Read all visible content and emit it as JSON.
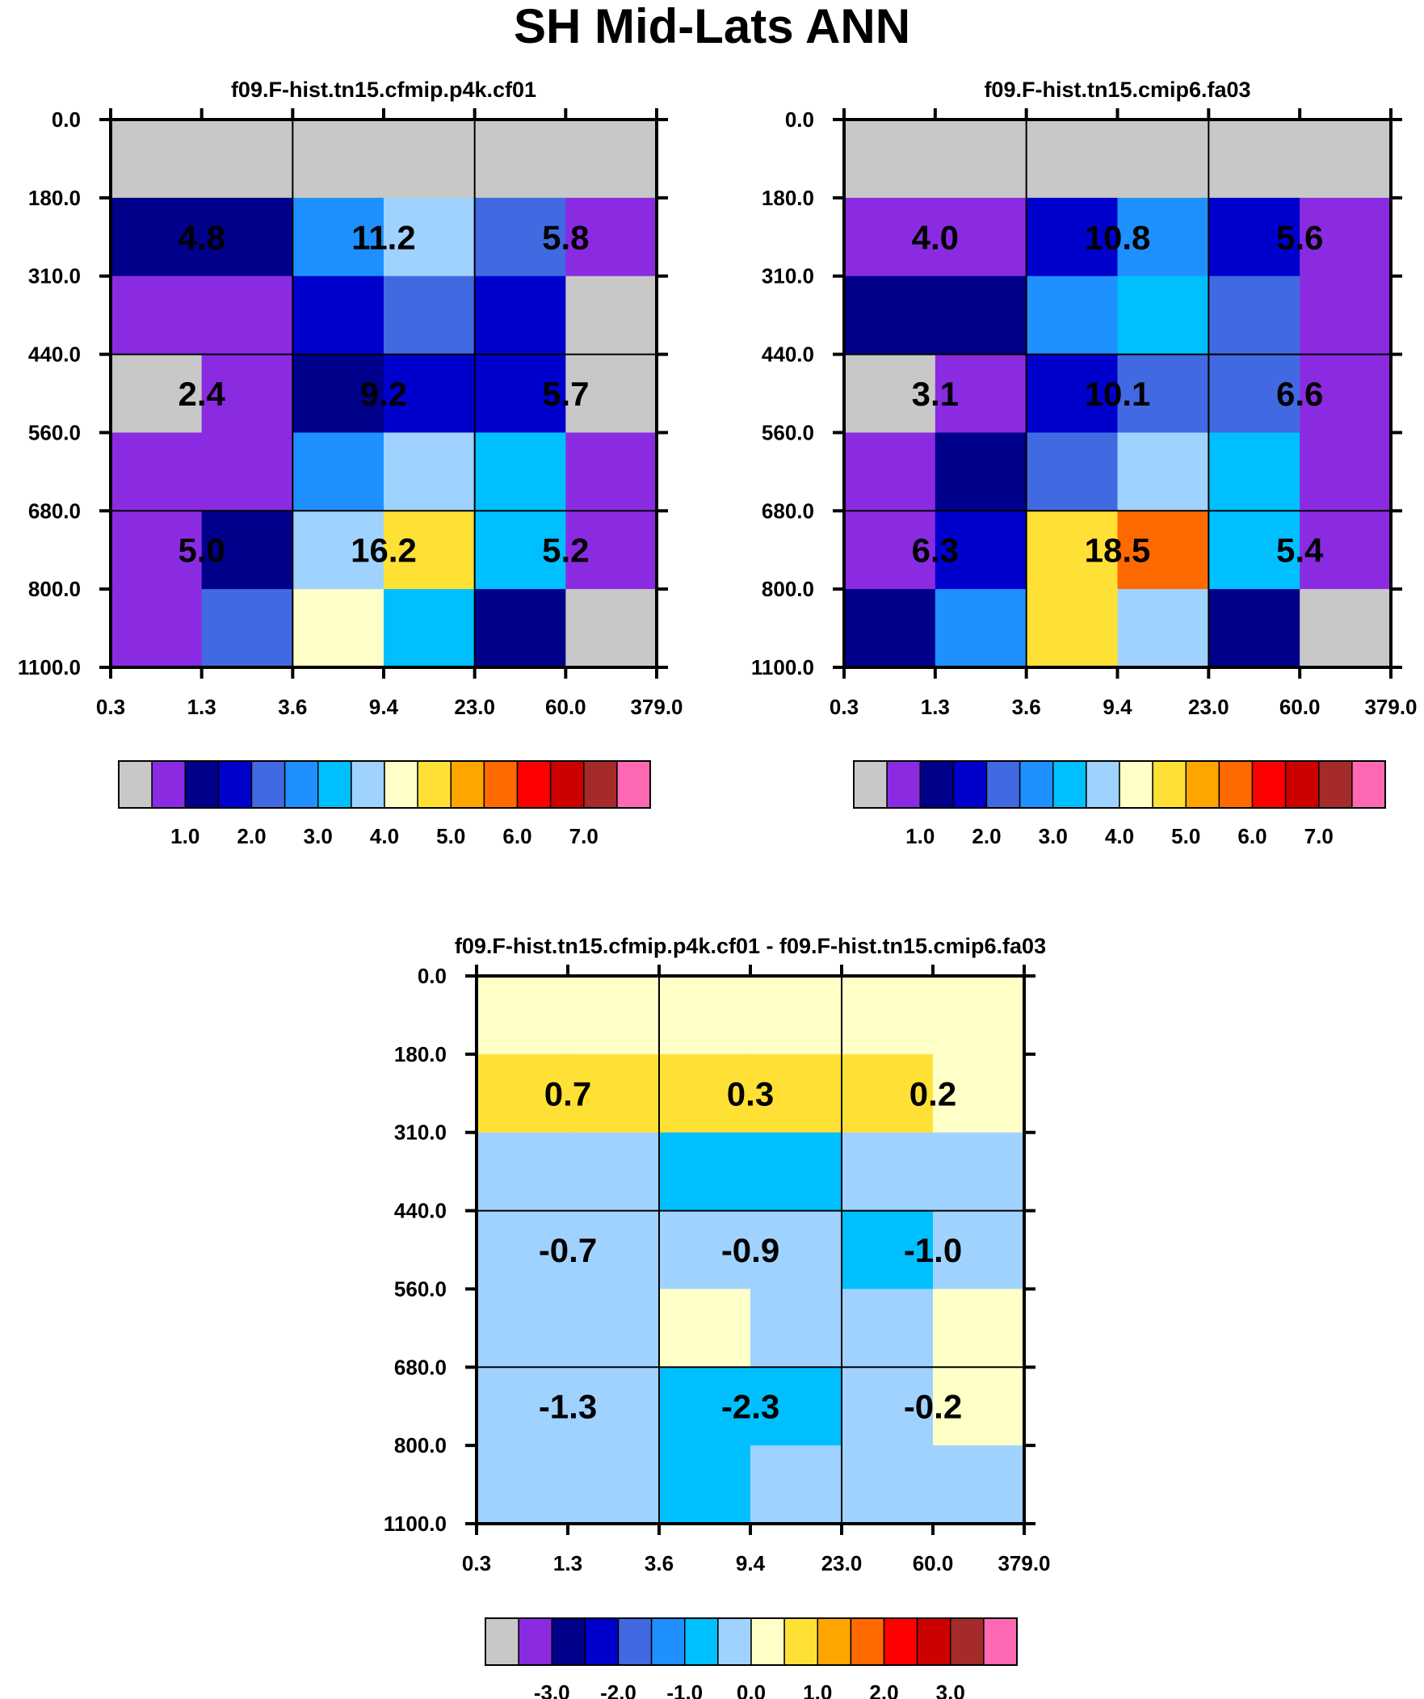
{
  "title": "SH Mid-Lats ANN",
  "palette": {
    "missing": "#c8c8c8",
    "colors": [
      "#c8c8c8",
      "#8a2be2",
      "#00008b",
      "#0000cd",
      "#4169e1",
      "#1e90ff",
      "#00bfff",
      "#a0d2ff",
      "#ffffc8",
      "#ffe135",
      "#ffa500",
      "#ff6a00",
      "#ff0000",
      "#cd0000",
      "#a52a2a",
      "#ff69b4"
    ]
  },
  "chart_data": [
    {
      "type": "heatmap",
      "name": "panel-left",
      "title": "f09.F-hist.tn15.cfmip.p4k.cf01",
      "x_ticks": [
        "0.3",
        "1.3",
        "3.6",
        "9.4",
        "23.0",
        "60.0",
        "379.0"
      ],
      "y_ticks": [
        "0.0",
        "180.0",
        "310.0",
        "440.0",
        "560.0",
        "680.0",
        "800.0",
        "1100.0"
      ],
      "cell_color_index": [
        [
          0,
          0,
          0,
          0,
          0,
          0
        ],
        [
          2,
          2,
          5,
          7,
          4,
          1
        ],
        [
          1,
          1,
          3,
          4,
          3,
          0
        ],
        [
          0,
          1,
          2,
          3,
          3,
          0
        ],
        [
          1,
          1,
          5,
          7,
          6,
          1
        ],
        [
          1,
          2,
          7,
          9,
          6,
          1
        ],
        [
          1,
          4,
          8,
          6,
          2,
          0
        ]
      ],
      "box_labels": [
        [
          "4.8",
          "11.2",
          "5.8"
        ],
        [
          "2.4",
          "9.2",
          "5.7"
        ],
        [
          "5.0",
          "16.2",
          "5.2"
        ]
      ],
      "colorbar_labels": [
        "1.0",
        "2.0",
        "3.0",
        "4.0",
        "5.0",
        "6.0",
        "7.0"
      ],
      "colorbar_label_start_boundary": 2
    },
    {
      "type": "heatmap",
      "name": "panel-right",
      "title": "f09.F-hist.tn15.cmip6.fa03",
      "x_ticks": [
        "0.3",
        "1.3",
        "3.6",
        "9.4",
        "23.0",
        "60.0",
        "379.0"
      ],
      "y_ticks": [
        "0.0",
        "180.0",
        "310.0",
        "440.0",
        "560.0",
        "680.0",
        "800.0",
        "1100.0"
      ],
      "cell_color_index": [
        [
          0,
          0,
          0,
          0,
          0,
          0
        ],
        [
          1,
          1,
          3,
          5,
          3,
          1
        ],
        [
          2,
          2,
          5,
          6,
          4,
          1
        ],
        [
          0,
          1,
          3,
          4,
          4,
          1
        ],
        [
          1,
          2,
          4,
          7,
          6,
          1
        ],
        [
          1,
          3,
          9,
          11,
          6,
          1
        ],
        [
          2,
          5,
          9,
          7,
          2,
          0
        ]
      ],
      "box_labels": [
        [
          "4.0",
          "10.8",
          "5.6"
        ],
        [
          "3.1",
          "10.1",
          "6.6"
        ],
        [
          "6.3",
          "18.5",
          "5.4"
        ]
      ],
      "colorbar_labels": [
        "1.0",
        "2.0",
        "3.0",
        "4.0",
        "5.0",
        "6.0",
        "7.0"
      ],
      "colorbar_label_start_boundary": 2
    },
    {
      "type": "heatmap",
      "name": "panel-difference",
      "title": "f09.F-hist.tn15.cfmip.p4k.cf01 - f09.F-hist.tn15.cmip6.fa03",
      "x_ticks": [
        "0.3",
        "1.3",
        "3.6",
        "9.4",
        "23.0",
        "60.0",
        "379.0"
      ],
      "y_ticks": [
        "0.0",
        "180.0",
        "310.0",
        "440.0",
        "560.0",
        "680.0",
        "800.0",
        "1100.0"
      ],
      "cell_color_index": [
        [
          8,
          8,
          8,
          8,
          8,
          8
        ],
        [
          9,
          9,
          9,
          9,
          9,
          8
        ],
        [
          7,
          7,
          6,
          6,
          7,
          7
        ],
        [
          7,
          7,
          7,
          7,
          6,
          7
        ],
        [
          7,
          7,
          8,
          7,
          7,
          8
        ],
        [
          7,
          7,
          6,
          6,
          7,
          8
        ],
        [
          7,
          7,
          6,
          7,
          7,
          7
        ]
      ],
      "box_labels": [
        [
          "0.7",
          "0.3",
          "0.2"
        ],
        [
          "-0.7",
          "-0.9",
          "-1.0"
        ],
        [
          "-1.3",
          "-2.3",
          "-0.2"
        ]
      ],
      "colorbar_labels": [
        "-3.0",
        "-2.0",
        "-1.0",
        "0.0",
        "1.0",
        "2.0",
        "3.0"
      ],
      "colorbar_label_start_boundary": 2
    }
  ]
}
